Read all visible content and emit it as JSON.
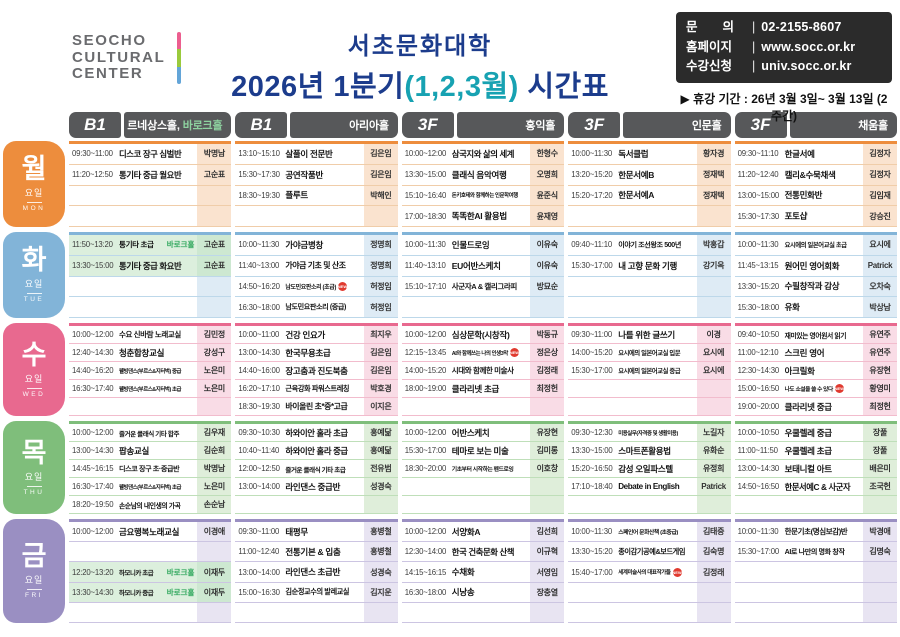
{
  "header": {
    "logo": {
      "lines": [
        "SEOCHO",
        "CULTURAL",
        "CENTER"
      ]
    },
    "title": {
      "line1": "서초문화대학",
      "line2_prefix": "2026년 1분기",
      "line2_highlight": "(1,2,3월)",
      "line2_suffix": " 시간표"
    },
    "contact": {
      "rows": [
        {
          "label": "문　　의",
          "value": "02-2155-8607"
        },
        {
          "label": "홈페이지",
          "value": "www.socc.or.kr"
        },
        {
          "label": "수강신청",
          "value": "univ.socc.or.kr"
        }
      ]
    },
    "notice": "▶ 휴강 기간 : 26년 3월 3일~ 3월 13일 (2주간)"
  },
  "columns": [
    {
      "floor": "B1",
      "hall": "르네상스홀,",
      "hall_highlight": "바로크홀"
    },
    {
      "floor": "B1",
      "hall": "아리아홀",
      "hall_highlight": ""
    },
    {
      "floor": "3F",
      "hall": "홍익홀",
      "hall_highlight": ""
    },
    {
      "floor": "3F",
      "hall": "인문홀",
      "hall_highlight": ""
    },
    {
      "floor": "3F",
      "hall": "채움홀",
      "hall_highlight": ""
    }
  ],
  "colors": {
    "title_navy": "#1c3c8c",
    "title_teal": "#17a2b2",
    "header_gray": "#57585a",
    "hall_baroque": "#8ed3a0",
    "tag_baroque": "#2fa75c",
    "baroque_bg": "#dcefdd",
    "baroque_bg_dark": "#cde8d1",
    "new_badge": "#e03a2f",
    "logo_bar": [
      "#ec5e8f",
      "#9aca3c",
      "#63a5d8"
    ]
  },
  "badge_label": "NEW",
  "days": [
    {
      "kor": "월",
      "sub": "요일",
      "eng": "MON",
      "color": "#ed8d3d",
      "tint": "#fae3cf",
      "line": "#f0cda9",
      "slots": 4,
      "cells": [
        [
          {
            "time": "09:30~11:00",
            "name": "디스코 장구 심벌반",
            "teacher": "박명남"
          },
          {
            "time": "11:20~12:50",
            "name": "통기타 중급 월요반",
            "teacher": "고순표"
          },
          null,
          null
        ],
        [
          {
            "time": "13:10~15:10",
            "name": "살풀이 전문반",
            "teacher": "김은임"
          },
          {
            "time": "15:30~17:30",
            "name": "공연작품반",
            "teacher": "김은임"
          },
          {
            "time": "18:30~19:30",
            "name": "플루트",
            "teacher": "박해인"
          },
          null
        ],
        [
          {
            "time": "10:00~12:00",
            "name": "삼국지와 삶의 세계",
            "teacher": "한형수"
          },
          {
            "time": "13:30~15:00",
            "name": "클래식 음악여행",
            "teacher": "오명희"
          },
          {
            "time": "15:10~16:40",
            "name": "돈키호테와 함께하는 인문학여행",
            "teacher": "윤준식"
          },
          {
            "time": "17:00~18:30",
            "name": "똑똑한AI 활용법",
            "teacher": "윤재영"
          }
        ],
        [
          {
            "time": "10:00~11:30",
            "name": "독서클럽",
            "teacher": "황자경"
          },
          {
            "time": "13:20~15:20",
            "name": "한문서예B",
            "teacher": "정재택"
          },
          {
            "time": "15:20~17:20",
            "name": "한문서예A",
            "teacher": "정재택"
          },
          null
        ],
        [
          {
            "time": "09:30~11:10",
            "name": "한글서예",
            "teacher": "김정자"
          },
          {
            "time": "11:20~12:40",
            "name": "캘리&수묵채색",
            "teacher": "김정자"
          },
          {
            "time": "13:00~15:00",
            "name": "전통민화반",
            "teacher": "김임재"
          },
          {
            "time": "15:30~17:30",
            "name": "포토샵",
            "teacher": "강승진"
          }
        ]
      ]
    },
    {
      "kor": "화",
      "sub": "요일",
      "eng": "TUE",
      "color": "#82b4d8",
      "tint": "#deebf5",
      "line": "#bdd8ea",
      "slots": 4,
      "cells": [
        [
          {
            "time": "11:50~13:20",
            "name": "통기타 초급",
            "teacher": "고순표",
            "tag": "바로크홀",
            "hl": true
          },
          {
            "time": "13:30~15:00",
            "name": "통기타 중급 화요반",
            "teacher": "고순표",
            "hl": true
          },
          null,
          null
        ],
        [
          {
            "time": "10:00~11:30",
            "name": "가야금병창",
            "teacher": "정명희"
          },
          {
            "time": "11:40~13:00",
            "name": "가야금 기초 및 산조",
            "teacher": "정명희"
          },
          {
            "time": "14:50~16:20",
            "name": "남도민요판소리 (초급)",
            "teacher": "허정임",
            "badge": true
          },
          {
            "time": "16:30~18:00",
            "name": "남도민요판소리 (중급)",
            "teacher": "허정임"
          }
        ],
        [
          {
            "time": "10:00~11:30",
            "name": "인물드로잉",
            "teacher": "이유숙"
          },
          {
            "time": "11:40~13:10",
            "name": "EU어반스케치",
            "teacher": "이유숙"
          },
          {
            "time": "15:10~17:10",
            "name": "사군자A & 캘리그라피",
            "teacher": "방묘순"
          },
          null
        ],
        [
          {
            "time": "09:40~11:10",
            "name": "이야기 조선왕조 500년",
            "teacher": "박홍갑"
          },
          {
            "time": "15:30~17:00",
            "name": "내 고향 문화 기행",
            "teacher": "강기옥"
          },
          null,
          null
        ],
        [
          {
            "time": "10:00~11:30",
            "name": "요시에의 일본어교실 초급",
            "teacher": "요시에"
          },
          {
            "time": "11:45~13:15",
            "name": "원어민 영어회화",
            "teacher": "Patrick"
          },
          {
            "time": "13:30~15:20",
            "name": "수필창작과 감상",
            "teacher": "오차숙"
          },
          {
            "time": "15:30~18:00",
            "name": "유화",
            "teacher": "박상남"
          }
        ]
      ]
    },
    {
      "kor": "수",
      "sub": "요일",
      "eng": "WED",
      "color": "#e8698f",
      "tint": "#f9dce6",
      "line": "#f2bccd",
      "slots": 5,
      "cells": [
        [
          {
            "time": "10:00~12:00",
            "name": "수요 신바람 노래교실",
            "teacher": "김민정"
          },
          {
            "time": "12:40~14:30",
            "name": "청춘합창교실",
            "teacher": "강성구"
          },
          {
            "time": "14:40~16:20",
            "name": "웰빙댄스(부르스&지터벅) 중급",
            "teacher": "노은미"
          },
          {
            "time": "16:30~17:40",
            "name": "웰빙댄스(부르스&지터벅) 초급",
            "teacher": "노은미"
          },
          null
        ],
        [
          {
            "time": "10:00~11:00",
            "name": "건강 인요가",
            "teacher": "최지우"
          },
          {
            "time": "13:00~14:30",
            "name": "한국무용초급",
            "teacher": "김은임"
          },
          {
            "time": "14:40~16:00",
            "name": "장고춤과 진도북춤",
            "teacher": "김은임"
          },
          {
            "time": "16:20~17:10",
            "name": "근육강화 파워스트레칭",
            "teacher": "박호경"
          },
          {
            "time": "18:30~19:30",
            "name": "바이올린 초*중*고급",
            "teacher": "이지은"
          }
        ],
        [
          {
            "time": "10:00~12:00",
            "name": "심상문학(시창작)",
            "teacher": "박동규"
          },
          {
            "time": "12:15~13:45",
            "name": "AI와 함께쓰는 나의 인생3막",
            "teacher": "정은상",
            "badge": true
          },
          {
            "time": "14:00~15:20",
            "name": "시대와 함께한 미술사",
            "teacher": "김정래"
          },
          {
            "time": "18:00~19:00",
            "name": "클라리넷 초급",
            "teacher": "최정헌"
          },
          null
        ],
        [
          {
            "time": "09:30~11:00",
            "name": "나를 위한 글쓰기",
            "teacher": "이경"
          },
          {
            "time": "14:00~15:20",
            "name": "요시에의 일본어교실 입문",
            "teacher": "요시에"
          },
          {
            "time": "15:30~17:00",
            "name": "요시에의 일본어교실 중급",
            "teacher": "요시에"
          },
          null,
          null
        ],
        [
          {
            "time": "09:40~10:50",
            "name": "재미있는 영어원서 읽기",
            "teacher": "유연주"
          },
          {
            "time": "11:00~12:10",
            "name": "스크린 영어",
            "teacher": "유연주"
          },
          {
            "time": "12:30~14:30",
            "name": "아크릴화",
            "teacher": "유장현"
          },
          {
            "time": "15:00~16:50",
            "name": "나도 소설을 쓸 수 있다",
            "teacher": "황영미",
            "badge": true
          },
          {
            "time": "19:00~20:00",
            "name": "클라리넷 중급",
            "teacher": "최정헌"
          }
        ]
      ]
    },
    {
      "kor": "목",
      "sub": "요일",
      "eng": "THU",
      "color": "#7fbe7b",
      "tint": "#dfeeda",
      "line": "#bfdfb9",
      "slots": 5,
      "cells": [
        [
          {
            "time": "10:00~12:00",
            "name": "즐거운 클래식 기타 합주",
            "teacher": "김우재"
          },
          {
            "time": "13:00~14:30",
            "name": "팝송교실",
            "teacher": "김순희"
          },
          {
            "time": "14:45~16:15",
            "name": "디스코 장구 초·중급반",
            "teacher": "박명남"
          },
          {
            "time": "16:30~17:40",
            "name": "웰빙댄스(부르스&지터벅) 초급",
            "teacher": "노은미"
          },
          {
            "time": "18:20~19:50",
            "name": "손순남의 내인생의 가곡",
            "teacher": "손순남"
          }
        ],
        [
          {
            "time": "09:30~10:30",
            "name": "하와이안 훌라 초급",
            "teacher": "홍예닮"
          },
          {
            "time": "10:40~11:40",
            "name": "하와이안 훌라 중급",
            "teacher": "홍예닮"
          },
          {
            "time": "12:00~12:50",
            "name": "즐거운 클래식 기타 초급",
            "teacher": "전유범"
          },
          {
            "time": "13:00~14:00",
            "name": "라인댄스 중급반",
            "teacher": "성경숙"
          },
          null
        ],
        [
          {
            "time": "10:00~12:00",
            "name": "어반스케치",
            "teacher": "유장현"
          },
          {
            "time": "15:30~17:00",
            "name": "테마로 보는 미술",
            "teacher": "김미롱"
          },
          {
            "time": "18:30~20:00",
            "name": "기초부터 시작하는 펜드로잉",
            "teacher": "이호창"
          },
          null,
          null
        ],
        [
          {
            "time": "09:30~12:30",
            "name": "미용실무(자격증 및 생활미용)",
            "teacher": "노길자"
          },
          {
            "time": "13:30~15:00",
            "name": "스마트폰활용법",
            "teacher": "유화순"
          },
          {
            "time": "15:20~16:50",
            "name": "감성 오일파스텔",
            "teacher": "유정희"
          },
          {
            "time": "17:10~18:40",
            "name": "Debate in English",
            "teacher": "Patrick"
          },
          null
        ],
        [
          {
            "time": "10:00~10:50",
            "name": "우쿨렐레 중급",
            "teacher": "장풀"
          },
          {
            "time": "11:00~11:50",
            "name": "우쿨렐레 초급",
            "teacher": "장풀"
          },
          {
            "time": "13:00~14:30",
            "name": "보태니컬 아트",
            "teacher": "배은미"
          },
          {
            "time": "14:50~16:50",
            "name": "한문서예C & 사군자",
            "teacher": "조국헌"
          },
          null
        ]
      ]
    },
    {
      "kor": "금",
      "sub": "요일",
      "eng": "FRI",
      "color": "#9a8fc2",
      "tint": "#e8e4f2",
      "line": "#ccc5e2",
      "slots": 5,
      "cells": [
        [
          {
            "time": "10:00~12:00",
            "name": "금요행복노래교실",
            "teacher": "이경애"
          },
          null,
          {
            "time": "12:20~13:20",
            "name": "하모니카 초급",
            "teacher": "이재두",
            "tag": "바로크홀",
            "hl": true
          },
          {
            "time": "13:30~14:30",
            "name": "하모니카 중급",
            "teacher": "이재두",
            "tag": "바로크홀",
            "hl": true
          },
          null
        ],
        [
          {
            "time": "09:30~11:00",
            "name": "태평무",
            "teacher": "홍병철"
          },
          {
            "time": "11:00~12:40",
            "name": "전통기본 & 입춤",
            "teacher": "홍병철"
          },
          {
            "time": "13:00~14:00",
            "name": "라인댄스 초급반",
            "teacher": "성경숙"
          },
          {
            "time": "15:00~16:30",
            "name": "김순정교수의 발레교실",
            "teacher": "김지운"
          },
          null
        ],
        [
          {
            "time": "10:00~12:00",
            "name": "서양화A",
            "teacher": "김선희"
          },
          {
            "time": "12:30~14:00",
            "name": "한국 건축문화 산책",
            "teacher": "이규혁"
          },
          {
            "time": "14:15~16:15",
            "name": "수채화",
            "teacher": "서영임"
          },
          {
            "time": "16:30~18:00",
            "name": "시낭송",
            "teacher": "장충열"
          },
          null
        ],
        [
          {
            "time": "10:00~11:30",
            "name": "스페인어 문화산책 (초중급)",
            "teacher": "김태중"
          },
          {
            "time": "13:30~15:20",
            "name": "종이감기공예&보드게임",
            "teacher": "김숙명"
          },
          {
            "time": "15:40~17:00",
            "name": "세계미술사의 대표작가들",
            "teacher": "김정래",
            "badge": true
          },
          null,
          null
        ],
        [
          {
            "time": "10:00~11:30",
            "name": "한문기초(명심보감)반",
            "teacher": "박경애"
          },
          {
            "time": "15:30~17:00",
            "name": "AI로 나만의 명화 창작",
            "teacher": "김명숙"
          },
          null,
          null,
          null
        ]
      ]
    }
  ]
}
